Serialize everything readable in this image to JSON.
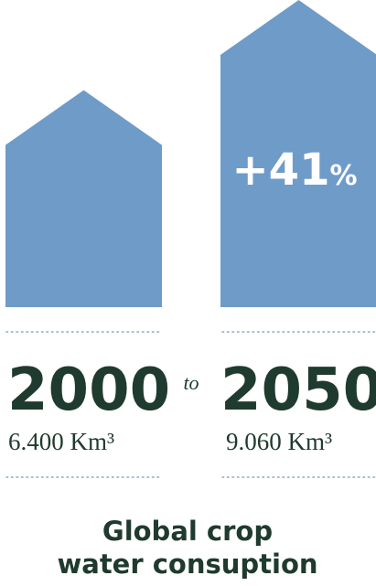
{
  "chart_data": {
    "type": "bar",
    "categories": [
      "2000",
      "2050"
    ],
    "values": [
      6400,
      9060
    ],
    "value_labels": [
      "6.400 Km³",
      "9.060 Km³"
    ],
    "connector": "to",
    "change_label": "+41",
    "change_unit": "%",
    "caption": [
      "Global crop",
      "water consuption"
    ],
    "ylim": [
      0,
      9060
    ]
  },
  "colors": {
    "bar": "#6f9bc9",
    "text": "#1f3a2e",
    "divider": "#8aa6c8"
  }
}
